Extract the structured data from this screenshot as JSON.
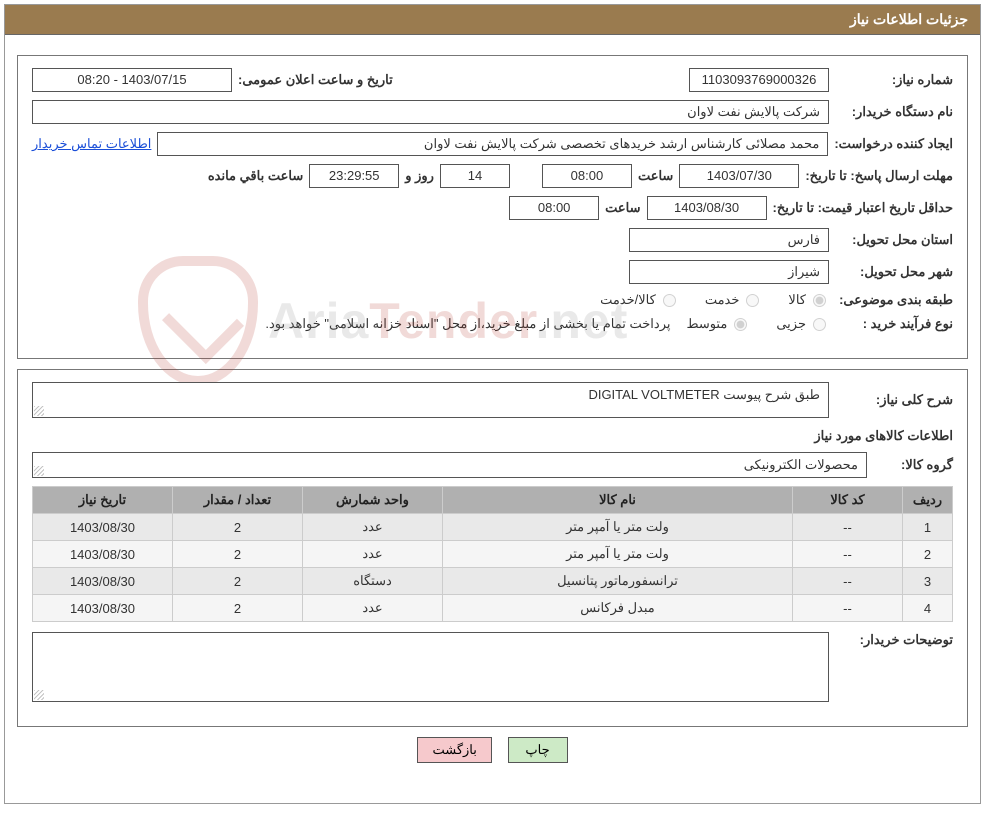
{
  "header": {
    "title": "جزئیات اطلاعات نیاز"
  },
  "watermark": {
    "text_prefix": "Aria",
    "text_mid": "Tender",
    "text_suffix": ".net"
  },
  "form": {
    "need_no_label": "شماره نیاز:",
    "need_no": "1103093769000326",
    "announce_label": "تاریخ و ساعت اعلان عمومی:",
    "announce_value": "1403/07/15 - 08:20",
    "buyer_org_label": "نام دستگاه خریدار:",
    "buyer_org": "شرکت پالایش نفت لاوان",
    "requester_label": "ایجاد کننده درخواست:",
    "requester": "محمد مصلائی کارشناس ارشد خریدهای تخصصی شرکت پالایش نفت لاوان",
    "buyer_contact_link": "اطلاعات تماس خریدار",
    "deadline_label": "مهلت ارسال پاسخ:",
    "to_date_label": "تا تاریخ:",
    "deadline_date": "1403/07/30",
    "time_label": "ساعت",
    "deadline_time": "08:00",
    "days_remaining": "14",
    "days_and": "روز و",
    "time_remaining": "23:29:55",
    "remaining_suffix": "ساعت باقي مانده",
    "price_valid_label": "حداقل تاریخ اعتبار قیمت:",
    "price_valid_date": "1403/08/30",
    "price_valid_time": "08:00",
    "province_label": "استان محل تحویل:",
    "province": "فارس",
    "city_label": "شهر محل تحویل:",
    "city": "شیراز",
    "category_label": "طبقه بندی موضوعی:",
    "cat_goods": "کالا",
    "cat_service": "خدمت",
    "cat_goods_service": "کالا/خدمت",
    "purchase_type_label": "نوع فرآیند خرید :",
    "pt_minor": "جزیی",
    "pt_medium": "متوسط",
    "payment_note": "پرداخت تمام یا بخشی از مبلغ خرید،از محل \"اسناد خزانه اسلامی\" خواهد بود."
  },
  "detail": {
    "overall_label": "شرح کلی نیاز:",
    "overall_text": "DIGITAL VOLTMETER  طبق شرح پیوست",
    "items_title": "اطلاعات کالاهای مورد نیاز",
    "group_label": "گروه کالا:",
    "group_value": "محصولات الکترونیکی",
    "table": {
      "headers": {
        "idx": "ردیف",
        "code": "کد کالا",
        "name": "نام کالا",
        "unit": "واحد شمارش",
        "qty": "تعداد / مقدار",
        "date": "تاریخ نیاز"
      },
      "rows": [
        {
          "idx": "1",
          "code": "--",
          "name": "ولت متر یا آمپر متر",
          "unit": "عدد",
          "qty": "2",
          "date": "1403/08/30"
        },
        {
          "idx": "2",
          "code": "--",
          "name": "ولت متر یا آمپر متر",
          "unit": "عدد",
          "qty": "2",
          "date": "1403/08/30"
        },
        {
          "idx": "3",
          "code": "--",
          "name": "ترانسفورماتور پتانسیل",
          "unit": "دستگاه",
          "qty": "2",
          "date": "1403/08/30"
        },
        {
          "idx": "4",
          "code": "--",
          "name": "مبدل فرکانس",
          "unit": "عدد",
          "qty": "2",
          "date": "1403/08/30"
        }
      ]
    },
    "buyer_notes_label": "توضیحات خریدار:",
    "buyer_notes": ""
  },
  "buttons": {
    "print": "چاپ",
    "back": "بازگشت"
  }
}
